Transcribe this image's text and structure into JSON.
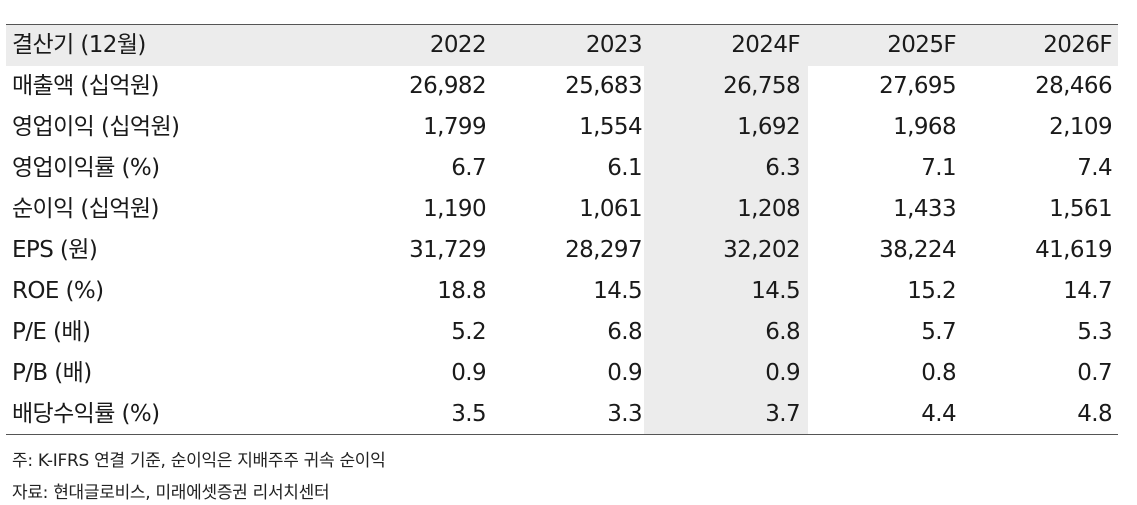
{
  "table": {
    "header": {
      "label": "결산기 (12월)",
      "years": [
        "2022",
        "2023",
        "2024F",
        "2025F",
        "2026F"
      ]
    },
    "rows": [
      {
        "label": "매출액 (십억원)",
        "values": [
          "26,982",
          "25,683",
          "26,758",
          "27,695",
          "28,466"
        ]
      },
      {
        "label": "영업이익 (십억원)",
        "values": [
          "1,799",
          "1,554",
          "1,692",
          "1,968",
          "2,109"
        ]
      },
      {
        "label": "영업이익률 (%)",
        "values": [
          "6.7",
          "6.1",
          "6.3",
          "7.1",
          "7.4"
        ]
      },
      {
        "label": "순이익 (십억원)",
        "values": [
          "1,190",
          "1,061",
          "1,208",
          "1,433",
          "1,561"
        ]
      },
      {
        "label": "EPS (원)",
        "values": [
          "31,729",
          "28,297",
          "32,202",
          "38,224",
          "41,619"
        ]
      },
      {
        "label": "ROE (%)",
        "values": [
          "18.8",
          "14.5",
          "14.5",
          "15.2",
          "14.7"
        ]
      },
      {
        "label": "P/E (배)",
        "values": [
          "5.2",
          "6.8",
          "6.8",
          "5.7",
          "5.3"
        ]
      },
      {
        "label": "P/B (배)",
        "values": [
          "0.9",
          "0.9",
          "0.9",
          "0.8",
          "0.7"
        ]
      },
      {
        "label": "배당수익률 (%)",
        "values": [
          "3.5",
          "3.3",
          "3.7",
          "4.4",
          "4.8"
        ]
      }
    ]
  },
  "notes": {
    "note": "주: K-IFRS 연결 기준, 순이익은 지배주주 귀속 순이익",
    "source": "자료: 현대글로비스, 미래에셋증권 리서치센터"
  },
  "colors": {
    "header_fill": "#ececec",
    "highlight_column_fill": "#ececec",
    "rule": "#555555"
  }
}
